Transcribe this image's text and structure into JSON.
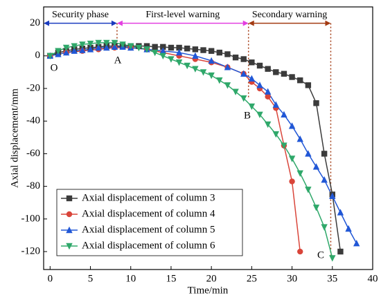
{
  "chart_data": {
    "type": "line",
    "x_label": "Time/min",
    "y_label": "Axial displacement/mm",
    "xlim": [
      -0.8,
      40
    ],
    "xticks": [
      0,
      5,
      10,
      15,
      20,
      25,
      30,
      35,
      40
    ],
    "ylim": [
      -131,
      30
    ],
    "yticks": [
      20,
      0,
      -20,
      -40,
      -60,
      -80,
      -100,
      -120
    ],
    "legend": "lower left",
    "phases": [
      {
        "label": "Security phase",
        "start": -0.8,
        "end": 8.3,
        "color": "#1a3bbf"
      },
      {
        "label": "First-level warning",
        "start": 8.3,
        "end": 24.6,
        "color": "#e33fe0"
      },
      {
        "label": "Secondary warning",
        "start": 24.6,
        "end": 34.8,
        "color": "#a33a12"
      }
    ],
    "point_labels": [
      "O",
      "A",
      "B",
      "C"
    ],
    "series": [
      {
        "name": "Axial displacement of column 3",
        "color": "#3b3b3b",
        "marker": "square",
        "x": [
          0,
          1,
          2,
          3,
          4,
          5,
          6,
          7,
          8,
          9,
          10,
          11,
          12,
          13,
          14,
          15,
          16,
          17,
          18,
          19,
          20,
          21,
          22,
          23,
          24,
          25,
          26,
          27,
          28,
          29,
          30,
          31,
          32,
          33,
          34,
          35,
          36
        ],
        "values": [
          0,
          2,
          3,
          4,
          4.5,
          5,
          5.5,
          6,
          6,
          6,
          6,
          6,
          6,
          5.5,
          5.5,
          5,
          5,
          4.5,
          4,
          3.5,
          3,
          2,
          1,
          -1,
          -2,
          -4,
          -6,
          -8,
          -10,
          -11,
          -13,
          -15,
          -18,
          -29,
          -60,
          -85,
          -120
        ]
      },
      {
        "name": "Axial displacement of column 4",
        "color": "#d9453a",
        "marker": "circle",
        "x": [
          0,
          2,
          4,
          6,
          8,
          10,
          12,
          14,
          16,
          18,
          20,
          22,
          24,
          25,
          26,
          27,
          28,
          29,
          30,
          31
        ],
        "values": [
          0,
          2,
          3,
          4,
          5,
          5,
          4,
          2,
          0,
          -2,
          -4,
          -7,
          -11,
          -16,
          -20,
          -25,
          -32,
          -55,
          -77,
          -120
        ]
      },
      {
        "name": "Axial displacement of column 5",
        "color": "#2157d6",
        "marker": "triangle-up",
        "x": [
          0,
          1,
          2,
          3,
          4,
          5,
          6,
          7,
          8,
          9,
          10,
          12,
          14,
          16,
          18,
          20,
          22,
          24,
          25,
          26,
          27,
          28,
          29,
          30,
          31,
          32,
          33,
          34,
          35,
          36,
          37,
          38
        ],
        "values": [
          0,
          1,
          2,
          3,
          3.5,
          4,
          5,
          5,
          5.5,
          5.5,
          5,
          4,
          3,
          2,
          0,
          -3,
          -7,
          -11,
          -14,
          -18,
          -22,
          -30,
          -36,
          -43,
          -51,
          -60,
          -68,
          -76,
          -86,
          -96,
          -106,
          -115
        ]
      },
      {
        "name": "Axial displacement of column 6",
        "color": "#2fa86a",
        "marker": "triangle-down",
        "x": [
          0,
          1,
          2,
          3,
          4,
          5,
          6,
          7,
          8,
          9,
          10,
          11,
          12,
          13,
          14,
          15,
          16,
          17,
          18,
          19,
          20,
          21,
          22,
          23,
          24,
          25,
          26,
          27,
          28,
          29,
          30,
          31,
          32,
          33,
          34,
          35
        ],
        "values": [
          0,
          3,
          5,
          6,
          7,
          7.5,
          8,
          8,
          8,
          7,
          6,
          5,
          4,
          2,
          0,
          -2,
          -4,
          -6,
          -8,
          -10,
          -12,
          -15,
          -18,
          -22,
          -26,
          -31,
          -36,
          -42,
          -48,
          -55,
          -63,
          -72,
          -82,
          -93,
          -105,
          -124
        ]
      }
    ]
  }
}
